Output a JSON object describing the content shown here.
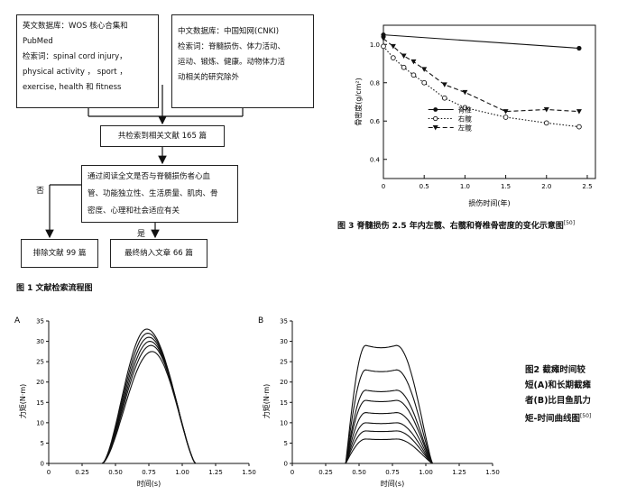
{
  "flowchart": {
    "box_en": {
      "lines": [
        "英文数据库：WOS 核心合集和",
        "PubMed",
        "检索词：spinal cord injury，",
        "physical  activity ， sport ，",
        "exercise, health 和 fitness"
      ]
    },
    "box_cn": {
      "lines": [
        "中文数据库：中国知网(CNKI)",
        "检索词：脊髓损伤、体力活动、",
        "运动、锻炼、健康。动物体力活",
        "动相关的研究除外"
      ]
    },
    "box_total": "共检索到相关文献 165 篇",
    "box_screen": {
      "lines": [
        "通过阅读全文是否与脊髓损伤者心血",
        "管、功能独立性、生活质量、肌肉、骨",
        "密度、心理和社会适应有关"
      ]
    },
    "label_no": "否",
    "label_yes": "是",
    "box_excluded": "排除文献 99 篇",
    "box_included": "最终纳入文章 66 篇",
    "caption": "图 1   文献检索流程图"
  },
  "fig3": {
    "caption": "图 3   脊髓损伤 2.5 年内左髋、右髋和脊椎骨密度的变化示意图",
    "caption_ref": "[50]",
    "ylabel": "骨密度(g/cm²)",
    "xlabel": "损伤时间(年)"
  },
  "fig2": {
    "label_a": "A",
    "label_b": "B",
    "ylabel": "力矩(N·m)",
    "xlabel": "时间(s)",
    "caption_lines": [
      "图2   截瘫时间较",
      "短(A)和长期截瘫",
      "者(B)比目鱼肌力",
      "矩-时间曲线图"
    ],
    "caption_ref": "[50]"
  },
  "chart_data": [
    {
      "type": "line",
      "title": "",
      "xlabel": "损伤时间(年)",
      "ylabel": "骨密度(g/cm²)",
      "xlim": [
        0,
        2.6
      ],
      "ylim": [
        0.3,
        1.1
      ],
      "xticks": [
        0,
        0.5,
        1.0,
        1.5,
        2.0,
        2.5
      ],
      "xtick_labels": [
        "0",
        "0.5",
        "1.0",
        "1.5",
        "2.0",
        "2.5"
      ],
      "yticks": [
        0.4,
        0.6,
        0.8,
        1.0
      ],
      "ytick_labels": [
        "0.4",
        "0.6",
        "0.8",
        "1.0"
      ],
      "legend": "center-left",
      "series": [
        {
          "name": "脊椎",
          "style": "solid",
          "marker": "filled-circle",
          "x": [
            0,
            2.4
          ],
          "y": [
            1.05,
            0.98
          ]
        },
        {
          "name": "右髋",
          "style": "dotted",
          "marker": "open-circle",
          "x": [
            0,
            0.12,
            0.25,
            0.37,
            0.5,
            0.75,
            1.0,
            1.5,
            2.0,
            2.4
          ],
          "y": [
            0.99,
            0.93,
            0.88,
            0.84,
            0.8,
            0.72,
            0.67,
            0.62,
            0.59,
            0.57
          ]
        },
        {
          "name": "左髋",
          "style": "dashed",
          "marker": "filled-triangle-down",
          "x": [
            0,
            0.12,
            0.25,
            0.37,
            0.5,
            0.75,
            1.0,
            1.5,
            2.0,
            2.4
          ],
          "y": [
            1.03,
            0.99,
            0.94,
            0.91,
            0.87,
            0.79,
            0.75,
            0.65,
            0.66,
            0.65
          ]
        }
      ]
    },
    {
      "type": "line",
      "title": "",
      "xlabel": "时间(s)",
      "ylabel": "力矩(N·m)",
      "xlim": [
        0,
        1.5
      ],
      "ylim": [
        0,
        35
      ],
      "xticks": [
        0,
        0.25,
        0.5,
        0.75,
        1.0,
        1.25,
        1.5
      ],
      "xtick_labels": [
        "0",
        "0.25",
        "0.50",
        "0.75",
        "1.00",
        "1.25",
        "1.50"
      ],
      "yticks": [
        0,
        5,
        10,
        15,
        20,
        25,
        30,
        35
      ],
      "ytick_labels": [
        "0",
        "5",
        "10",
        "15",
        "20",
        "25",
        "30",
        "35"
      ],
      "curves": {
        "onset": 0.4,
        "peak_time": 0.75,
        "end": 1.2,
        "peaks": [
          33,
          32,
          31,
          30,
          29,
          27.5
        ]
      }
    },
    {
      "type": "line",
      "title": "",
      "xlabel": "时间(s)",
      "ylabel": "力矩(N·m)",
      "xlim": [
        0,
        1.5
      ],
      "ylim": [
        0,
        35
      ],
      "xticks": [
        0,
        0.25,
        0.5,
        0.75,
        1.0,
        1.25,
        1.5
      ],
      "xtick_labels": [
        "0",
        "0.25",
        "0.50",
        "0.75",
        "1.00",
        "1.25",
        "1.50"
      ],
      "yticks": [
        0,
        5,
        10,
        15,
        20,
        25,
        30,
        35
      ],
      "ytick_labels": [
        "0",
        "5",
        "10",
        "15",
        "20",
        "25",
        "30",
        "35"
      ],
      "curves": {
        "onset": 0.4,
        "plateau_start": 0.55,
        "plateau_end": 0.78,
        "end": 1.2,
        "peaks": [
          29,
          23,
          18,
          15.5,
          12.5,
          10,
          8,
          6
        ]
      }
    }
  ]
}
